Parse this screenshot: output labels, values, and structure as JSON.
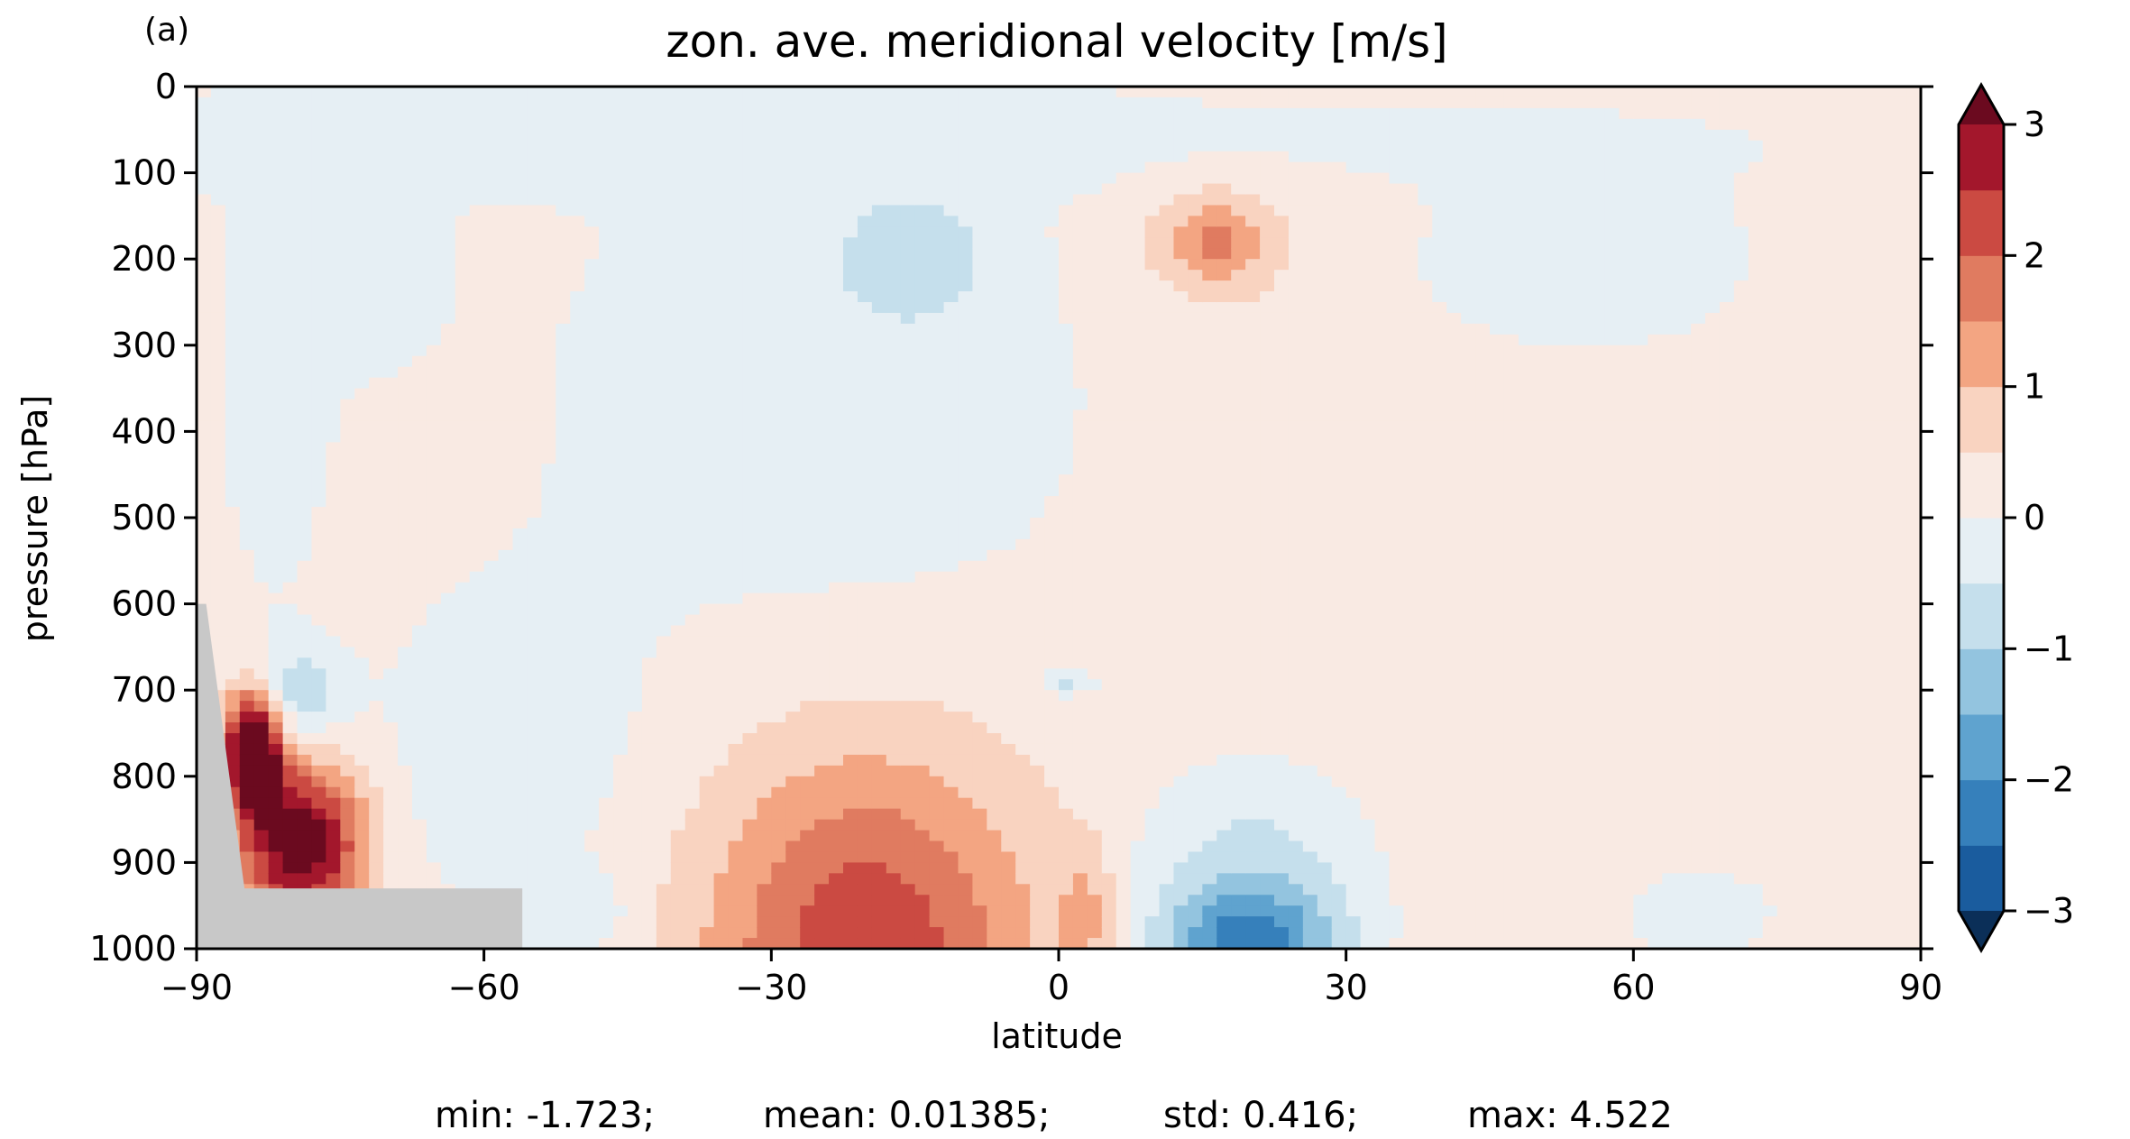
{
  "panel_label": "(a)",
  "stats": {
    "min": "min: -1.723;",
    "mean": "mean: 0.01385;",
    "std": "std: 0.416;",
    "max": "max: 4.522"
  },
  "chart_data": {
    "type": "heatmap",
    "title": "zon. ave. meridional velocity [m/s]",
    "xlabel": "latitude",
    "ylabel": "pressure [hPa]",
    "xlim": [
      -90,
      90
    ],
    "ylim": [
      1000,
      0
    ],
    "x_ticks": [
      -90,
      -60,
      -30,
      0,
      30,
      60,
      90
    ],
    "x_tick_labels": [
      "−90",
      "−60",
      "−30",
      "0",
      "30",
      "60",
      "90"
    ],
    "y_ticks": [
      0,
      100,
      200,
      300,
      400,
      500,
      600,
      700,
      800,
      900,
      1000
    ],
    "y_tick_labels": [
      "0",
      "100",
      "200",
      "300",
      "400",
      "500",
      "600",
      "700",
      "800",
      "900",
      "1000"
    ],
    "colorbar": {
      "levels": [
        -3,
        -2.5,
        -2,
        -1.5,
        -1,
        -0.5,
        0,
        0.5,
        1,
        1.5,
        2,
        2.5,
        3
      ],
      "colors": [
        "#1a5c9e",
        "#3680bb",
        "#5fa3cf",
        "#93c4df",
        "#c5dfec",
        "#e6eff4",
        "#f9eae3",
        "#f9d3c0",
        "#f3a582",
        "#e07b60",
        "#cb4a42",
        "#a3172c"
      ],
      "under_color": "#0b2f58",
      "over_color": "#6b0a1f",
      "extend": "both",
      "ticks": [
        -3,
        -2,
        -1,
        0,
        1,
        2,
        3
      ],
      "tick_labels": [
        "−3",
        "−2",
        "−1",
        "0",
        "1",
        "2",
        "3"
      ]
    },
    "missing_color": "#c8c8c8",
    "background_level": 0.25,
    "features": [
      {
        "lat": -60,
        "p": 60,
        "value": -0.25,
        "dlat": 140,
        "dp": 60
      },
      {
        "lat": -25,
        "p": 350,
        "value": -0.25,
        "dlat": 33,
        "dp": 350
      },
      {
        "lat": -82,
        "p": 330,
        "value": -0.3,
        "dlat": 6,
        "dp": 260
      },
      {
        "lat": -72,
        "p": 200,
        "value": -0.25,
        "dlat": 8,
        "dp": 130
      },
      {
        "lat": -15,
        "p": 200,
        "value": -0.6,
        "dlat": 8,
        "dp": 70
      },
      {
        "lat": 55,
        "p": 200,
        "value": -0.35,
        "dlat": 18,
        "dp": 110
      },
      {
        "lat": -58,
        "p": 780,
        "value": -0.25,
        "dlat": 15,
        "dp": 200
      },
      {
        "lat": -50,
        "p": 960,
        "value": -0.3,
        "dlat": 6,
        "dp": 50
      },
      {
        "lat": 20,
        "p": 920,
        "value": -0.75,
        "dlat": 12,
        "dp": 120
      },
      {
        "lat": 20,
        "p": 995,
        "value": -1.7,
        "dlat": 9,
        "dp": 60
      },
      {
        "lat": 1,
        "p": 690,
        "value": -0.6,
        "dlat": 2.5,
        "dp": 15
      },
      {
        "lat": 67,
        "p": 960,
        "value": -0.5,
        "dlat": 7,
        "dp": 45
      },
      {
        "lat": -80,
        "p": 710,
        "value": -0.9,
        "dlat": 5,
        "dp": 60
      },
      {
        "lat": 0,
        "p": 360,
        "value": 0.25,
        "dlat": 8,
        "dp": 80
      },
      {
        "lat": 17,
        "p": 180,
        "value": 0.7,
        "dlat": 10,
        "dp": 100
      },
      {
        "lat": 16,
        "p": 180,
        "value": 1.3,
        "dlat": 5,
        "dp": 45
      },
      {
        "lat": -20,
        "p": 1000,
        "value": 2.4,
        "dlat": 17,
        "dp": 230
      },
      {
        "lat": 3,
        "p": 960,
        "value": 1.05,
        "dlat": 3,
        "dp": 80
      },
      {
        "lat": -79,
        "p": 880,
        "value": 3.5,
        "dlat": 6.5,
        "dp": 95
      },
      {
        "lat": -84,
        "p": 770,
        "value": 4.5,
        "dlat": 3,
        "dp": 70
      }
    ],
    "missing_region": [
      [
        -90,
        600
      ],
      [
        -89,
        600
      ],
      [
        -85,
        930
      ],
      [
        -56,
        930
      ],
      [
        -56,
        1000
      ],
      [
        -90,
        1000
      ]
    ]
  }
}
